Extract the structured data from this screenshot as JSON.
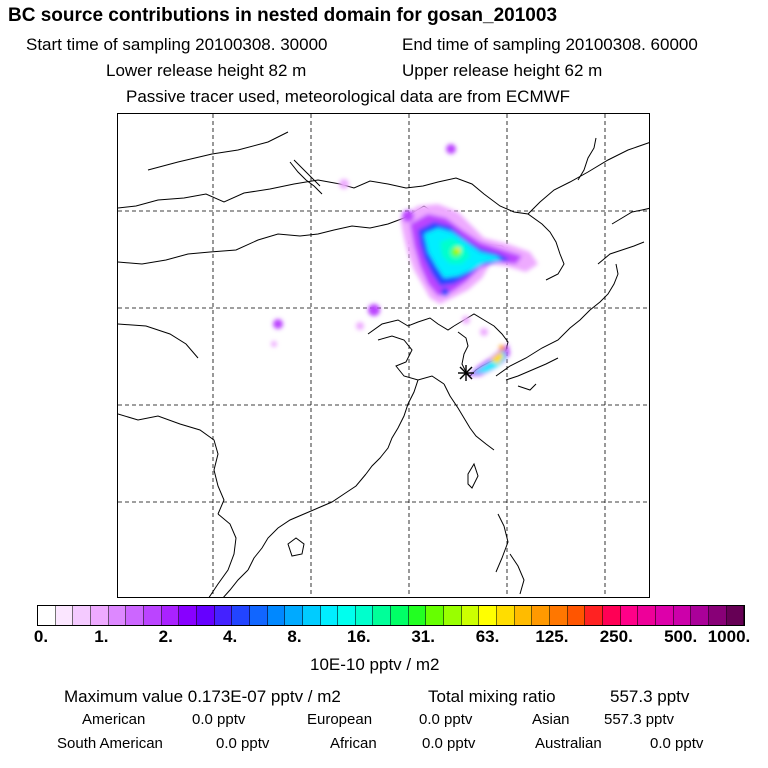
{
  "header": {
    "title": "BC  source contributions in nested domain for gosan_201003",
    "start_time": "Start time of sampling 20100308. 30000",
    "end_time": "End time of sampling 20100308. 60000",
    "lower_release": "Lower release height   82 m",
    "upper_release": "Upper release height   62 m",
    "tracer_note": "Passive tracer used, meteorological data are from ECMWF"
  },
  "colorbar": {
    "tick_labels": [
      "0.",
      "1.",
      "2.",
      "4.",
      "8.",
      "16.",
      "31.",
      "63.",
      "125.",
      "250.",
      "500.",
      "1000."
    ],
    "units": "10E-10 pptv / m2",
    "colors": [
      "#ffffff",
      "#fbe6ff",
      "#f4caff",
      "#eeaaff",
      "#dd88ff",
      "#cc66ff",
      "#bb44ff",
      "#aa22ff",
      "#8800ff",
      "#6600ff",
      "#4422ff",
      "#2244ff",
      "#1166ff",
      "#0088ff",
      "#00aaff",
      "#00ccff",
      "#00eeff",
      "#00ffee",
      "#00ffcc",
      "#00ff99",
      "#00ff66",
      "#22ff22",
      "#66ff00",
      "#99ff00",
      "#ccff00",
      "#ffff00",
      "#ffdd00",
      "#ffbb00",
      "#ff9900",
      "#ff7700",
      "#ff5500",
      "#ff2222",
      "#ff0055",
      "#ff0088",
      "#ee0099",
      "#dd00aa",
      "#cc00aa",
      "#aa0099",
      "#880077",
      "#660055"
    ]
  },
  "stats": {
    "max_value": "Maximum value  0.173E-07 pptv / m2",
    "total_label": "Total mixing ratio",
    "total_value": "557.3 pptv",
    "regions_row1": [
      {
        "name": "American",
        "value": "0.0 pptv"
      },
      {
        "name": "European",
        "value": "0.0 pptv"
      },
      {
        "name": "Asian",
        "value": "557.3 pptv"
      }
    ],
    "regions_row2": [
      {
        "name": "South American",
        "value": "0.0 pptv"
      },
      {
        "name": "African",
        "value": "0.0 pptv"
      },
      {
        "name": "Australian",
        "value": "0.0 pptv"
      }
    ]
  },
  "map": {
    "receptor_marker": "star-cross",
    "plume_colors": {
      "light": "#eeaaff",
      "violet": "#bb44ff",
      "blue": "#2244ff",
      "cyan": "#00eeff",
      "teal": "#00ffcc",
      "green": "#66ff00",
      "yellow": "#ffdd00",
      "orange": "#ff9900"
    }
  }
}
